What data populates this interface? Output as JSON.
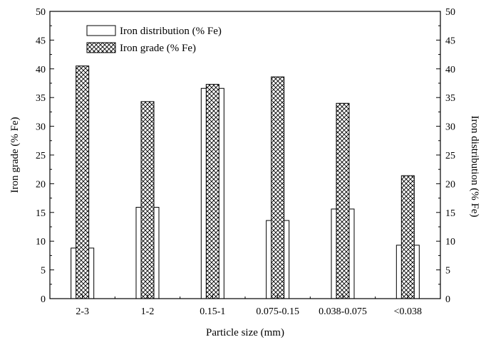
{
  "chart_data": {
    "type": "bar",
    "categories": [
      "2-3",
      "1-2",
      "0.15-1",
      "0.075-0.15",
      "0.038-0.075",
      "<0.038"
    ],
    "series": [
      {
        "name": "Iron distribution (% Fe)",
        "values": [
          8.8,
          15.9,
          36.6,
          13.6,
          15.6,
          9.3
        ],
        "axis": "right",
        "pattern": "open"
      },
      {
        "name": "Iron grade (% Fe)",
        "values": [
          40.5,
          34.3,
          37.3,
          38.6,
          34.0,
          21.4
        ],
        "axis": "left",
        "pattern": "crosshatch"
      }
    ],
    "xlabel": "Particle size (mm)",
    "ylabel_left": "Iron grade (% Fe)",
    "ylabel_right": "Iron distribution (% Fe)",
    "ylim_left": [
      0,
      50
    ],
    "ylim_right": [
      0,
      50
    ],
    "yticks": [
      "0",
      "5",
      "10",
      "15",
      "20",
      "25",
      "30",
      "35",
      "40",
      "45",
      "50"
    ],
    "grid": false,
    "legend_position": "top-left"
  }
}
